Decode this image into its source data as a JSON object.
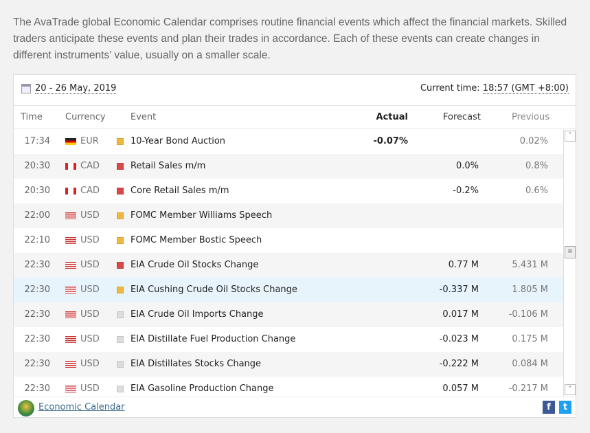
{
  "intro": "The AvaTrade global Economic Calendar comprises routine financial events which affect the financial markets. Skilled traders anticipate these events and plan their trades in accordance. Each of these events can create changes in different instruments’ value, usually on a smaller scale.",
  "date_range": "20 - 26 May, 2019",
  "current_time_label": "Current time:",
  "current_time": "18:57 (GMT +8:00)",
  "columns": {
    "time": "Time",
    "currency": "Currency",
    "event": "Event",
    "actual": "Actual",
    "forecast": "Forecast",
    "previous": "Previous"
  },
  "colors": {
    "medium": "#f0b840",
    "high": "#d94848",
    "low": "#dddddd"
  },
  "rows": [
    {
      "time": "17:34",
      "currency": "EUR",
      "flag": "de",
      "impact": "medium",
      "event": "10-Year Bond Auction",
      "actual": "-0.07%",
      "forecast": "",
      "previous": "0.02%"
    },
    {
      "time": "20:30",
      "currency": "CAD",
      "flag": "ca",
      "impact": "high",
      "event": "Retail Sales m/m",
      "actual": "",
      "forecast": "0.0%",
      "previous": "0.8%"
    },
    {
      "time": "20:30",
      "currency": "CAD",
      "flag": "ca",
      "impact": "high",
      "event": "Core Retail Sales m/m",
      "actual": "",
      "forecast": "-0.2%",
      "previous": "0.6%"
    },
    {
      "time": "22:00",
      "currency": "USD",
      "flag": "us",
      "impact": "medium",
      "event": "FOMC Member Williams Speech",
      "actual": "",
      "forecast": "",
      "previous": ""
    },
    {
      "time": "22:10",
      "currency": "USD",
      "flag": "us",
      "impact": "medium",
      "event": "FOMC Member Bostic Speech",
      "actual": "",
      "forecast": "",
      "previous": ""
    },
    {
      "time": "22:30",
      "currency": "USD",
      "flag": "us",
      "impact": "high",
      "event": "EIA Crude Oil Stocks Change",
      "actual": "",
      "forecast": "0.77 M",
      "previous": "5.431 M"
    },
    {
      "time": "22:30",
      "currency": "USD",
      "flag": "us",
      "impact": "medium",
      "event": "EIA Cushing Crude Oil Stocks Change",
      "actual": "",
      "forecast": "-0.337 M",
      "previous": "1.805 M"
    },
    {
      "time": "22:30",
      "currency": "USD",
      "flag": "us",
      "impact": "low",
      "event": "EIA Crude Oil Imports Change",
      "actual": "",
      "forecast": "0.017 M",
      "previous": "-0.106 M"
    },
    {
      "time": "22:30",
      "currency": "USD",
      "flag": "us",
      "impact": "low",
      "event": "EIA Distillate Fuel Production Change",
      "actual": "",
      "forecast": "-0.023 M",
      "previous": "0.175 M"
    },
    {
      "time": "22:30",
      "currency": "USD",
      "flag": "us",
      "impact": "low",
      "event": "EIA Distillates Stocks Change",
      "actual": "",
      "forecast": "-0.222 M",
      "previous": "0.084 M"
    },
    {
      "time": "22:30",
      "currency": "USD",
      "flag": "us",
      "impact": "low",
      "event": "EIA Gasoline Production Change",
      "actual": "",
      "forecast": "0.057 M",
      "previous": "-0.217 M"
    }
  ],
  "footer": {
    "link": "Economic Calendar",
    "facebook": "f",
    "twitter": "t"
  }
}
